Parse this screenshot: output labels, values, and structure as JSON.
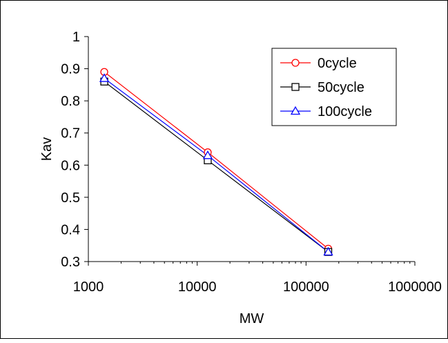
{
  "chart_data": {
    "type": "line",
    "xlabel": "MW",
    "ylabel": "Kav",
    "x_scale": "log",
    "xlim": [
      1000,
      1000000
    ],
    "ylim": [
      0.3,
      1.0
    ],
    "x_ticks": [
      1000,
      10000,
      100000,
      1000000
    ],
    "x_tick_labels": [
      "1000",
      "10000",
      "100000",
      "1000000"
    ],
    "y_ticks": [
      0.3,
      0.4,
      0.5,
      0.6,
      0.7,
      0.8,
      0.9,
      1.0
    ],
    "y_tick_labels": [
      "0.3",
      "0.4",
      "0.5",
      "0.6",
      "0.7",
      "0.8",
      "0.9",
      "1"
    ],
    "grid": false,
    "legend_position": "top-right",
    "x": [
      1400,
      12500,
      160000
    ],
    "series": [
      {
        "name": "0cycle",
        "values": [
          0.89,
          0.64,
          0.34
        ],
        "color": "#ff0000",
        "marker": "circle"
      },
      {
        "name": "50cycle",
        "values": [
          0.86,
          0.615,
          0.33
        ],
        "color": "#000000",
        "marker": "square"
      },
      {
        "name": "100cycle",
        "values": [
          0.87,
          0.63,
          0.33
        ],
        "color": "#0000ff",
        "marker": "triangle"
      }
    ]
  }
}
